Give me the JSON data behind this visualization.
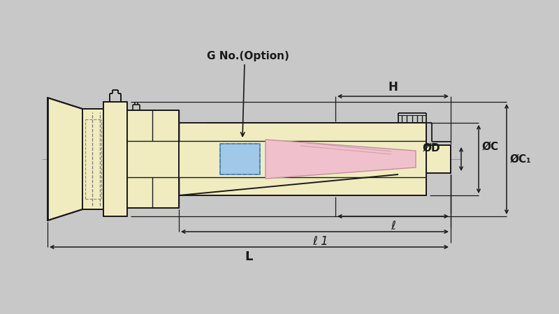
{
  "bg_color": "#c8c8c8",
  "body_fill": "#f0ecc0",
  "pink_fill": "#f0c0cc",
  "blue_fill": "#a0c8e8",
  "line_color": "#1a1a1a",
  "labels": {
    "G_no": "G No.(Option)",
    "H": "H",
    "phiC": "ØC",
    "phiC1": "ØC₁",
    "phiD": "ØD",
    "ell": "ℓ",
    "ell1": "ℓ 1",
    "L": "L"
  }
}
